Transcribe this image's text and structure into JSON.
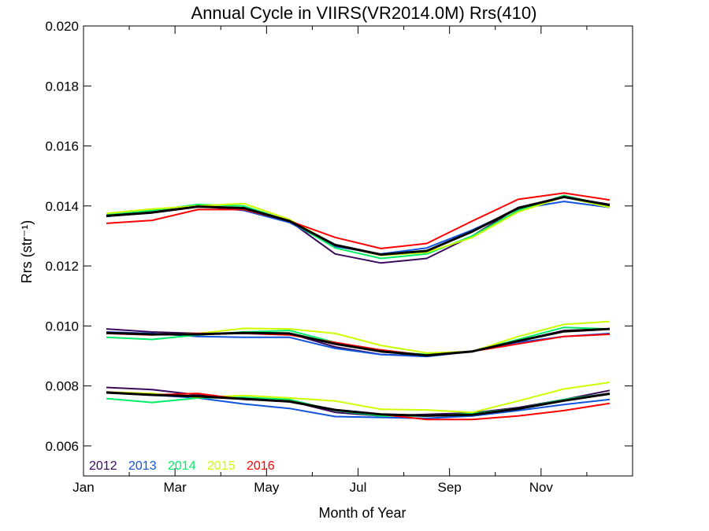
{
  "chart_data": {
    "type": "line",
    "title": "Annual Cycle in VIIRS(VR2014.0M) Rrs(410)",
    "xlabel": "Month of Year",
    "ylabel": "Rrs (str⁻¹)",
    "xlim": [
      1,
      13
    ],
    "ylim": [
      0.005,
      0.02
    ],
    "x_ticks": [
      1,
      3,
      5,
      7,
      9,
      11
    ],
    "x_tick_labels": [
      "Jan",
      "Mar",
      "May",
      "Jul",
      "Sep",
      "Nov"
    ],
    "y_ticks": [
      0.006,
      0.008,
      0.01,
      0.012,
      0.014,
      0.016,
      0.018,
      0.02
    ],
    "y_tick_labels": [
      "0.006",
      "0.008",
      "0.010",
      "0.012",
      "0.014",
      "0.016",
      "0.018",
      "0.020"
    ],
    "grid": false,
    "legend_placement": "bottom-left",
    "x": [
      1.5,
      2.5,
      3.5,
      4.5,
      5.5,
      6.5,
      7.5,
      8.5,
      9.5,
      10.5,
      11.5,
      12.5
    ],
    "groups": [
      {
        "series": [
          {
            "name": "2012",
            "color": "#3c0a5c",
            "values": [
              0.01365,
              0.0138,
              0.014,
              0.0139,
              0.0135,
              0.0124,
              0.0121,
              0.01225,
              0.013,
              0.01395,
              0.0143,
              0.01405
            ]
          },
          {
            "name": "2013",
            "color": "#1155dd",
            "values": [
              0.01365,
              0.01378,
              0.014,
              0.01385,
              0.01345,
              0.01265,
              0.0124,
              0.0126,
              0.0132,
              0.0139,
              0.01415,
              0.01395
            ]
          },
          {
            "name": "2014",
            "color": "#00ee66",
            "values": [
              0.0137,
              0.01385,
              0.01405,
              0.014,
              0.0135,
              0.0126,
              0.01225,
              0.0124,
              0.013,
              0.01385,
              0.01435,
              0.014
            ]
          },
          {
            "name": "2015",
            "color": "#ccff00",
            "values": [
              0.01375,
              0.0139,
              0.014,
              0.01408,
              0.01355,
              0.0127,
              0.01235,
              0.01245,
              0.01295,
              0.0138,
              0.0143,
              0.01395
            ]
          },
          {
            "name": "2016",
            "color": "#ff0000",
            "values": [
              0.01342,
              0.01352,
              0.01388,
              0.01388,
              0.0135,
              0.01295,
              0.01258,
              0.01275,
              0.0135,
              0.01422,
              0.01443,
              0.0142
            ]
          },
          {
            "name": "",
            "color": "#000000",
            "values": [
              0.01367,
              0.01378,
              0.01398,
              0.01393,
              0.0135,
              0.0127,
              0.01238,
              0.0125,
              0.01315,
              0.01393,
              0.0143,
              0.01403
            ]
          }
        ]
      },
      {
        "series": [
          {
            "name": "2012",
            "color": "#3c0a5c",
            "values": [
              0.0099,
              0.0098,
              0.00975,
              0.00975,
              0.00975,
              0.0093,
              0.00905,
              0.009,
              0.00915,
              0.0095,
              0.00985,
              0.0099
            ]
          },
          {
            "name": "2013",
            "color": "#1155dd",
            "values": [
              0.0098,
              0.00975,
              0.00965,
              0.00962,
              0.00962,
              0.00925,
              0.00905,
              0.00898,
              0.00915,
              0.00945,
              0.00965,
              0.00975
            ]
          },
          {
            "name": "2014",
            "color": "#00ee66",
            "values": [
              0.00962,
              0.00955,
              0.0097,
              0.0098,
              0.00985,
              0.00945,
              0.00915,
              0.00905,
              0.00915,
              0.00955,
              0.00995,
              0.0099
            ]
          },
          {
            "name": "2015",
            "color": "#ccff00",
            "values": [
              0.00975,
              0.0097,
              0.00975,
              0.00992,
              0.0099,
              0.00975,
              0.00935,
              0.0091,
              0.00915,
              0.00965,
              0.01005,
              0.01015
            ]
          },
          {
            "name": "2016",
            "color": "#ff0000",
            "values": [
              0.00975,
              0.0097,
              0.00975,
              0.00975,
              0.0097,
              0.00945,
              0.0092,
              0.00902,
              0.00915,
              0.0094,
              0.00965,
              0.00972
            ]
          },
          {
            "name": "",
            "color": "#000000",
            "values": [
              0.00977,
              0.00972,
              0.00972,
              0.00977,
              0.00975,
              0.0094,
              0.00915,
              0.00902,
              0.00915,
              0.0095,
              0.00982,
              0.0099
            ]
          }
        ]
      },
      {
        "series": [
          {
            "name": "2012",
            "color": "#3c0a5c",
            "values": [
              0.00795,
              0.00788,
              0.0077,
              0.00758,
              0.0075,
              0.00712,
              0.007,
              0.00705,
              0.0071,
              0.00728,
              0.00755,
              0.00785
            ]
          },
          {
            "name": "2013",
            "color": "#1155dd",
            "values": [
              0.0078,
              0.0077,
              0.0076,
              0.0074,
              0.00725,
              0.00698,
              0.00695,
              0.00692,
              0.007,
              0.00718,
              0.00738,
              0.00755
            ]
          },
          {
            "name": "2014",
            "color": "#00ee66",
            "values": [
              0.00758,
              0.00745,
              0.0076,
              0.00762,
              0.00755,
              0.00718,
              0.007,
              0.007,
              0.00708,
              0.00725,
              0.00755,
              0.00775
            ]
          },
          {
            "name": "2015",
            "color": "#ccff00",
            "values": [
              0.0078,
              0.00775,
              0.00762,
              0.00768,
              0.0076,
              0.0075,
              0.00722,
              0.0072,
              0.00712,
              0.0075,
              0.0079,
              0.00812
            ]
          },
          {
            "name": "2016",
            "color": "#ff0000",
            "values": [
              0.0078,
              0.0077,
              0.00775,
              0.00755,
              0.0075,
              0.0072,
              0.00705,
              0.00688,
              0.00688,
              0.007,
              0.00718,
              0.00742
            ]
          },
          {
            "name": "",
            "color": "#000000",
            "values": [
              0.00778,
              0.0077,
              0.00765,
              0.00757,
              0.00748,
              0.0072,
              0.00705,
              0.00701,
              0.00704,
              0.00724,
              0.00751,
              0.00774
            ]
          }
        ]
      }
    ]
  }
}
